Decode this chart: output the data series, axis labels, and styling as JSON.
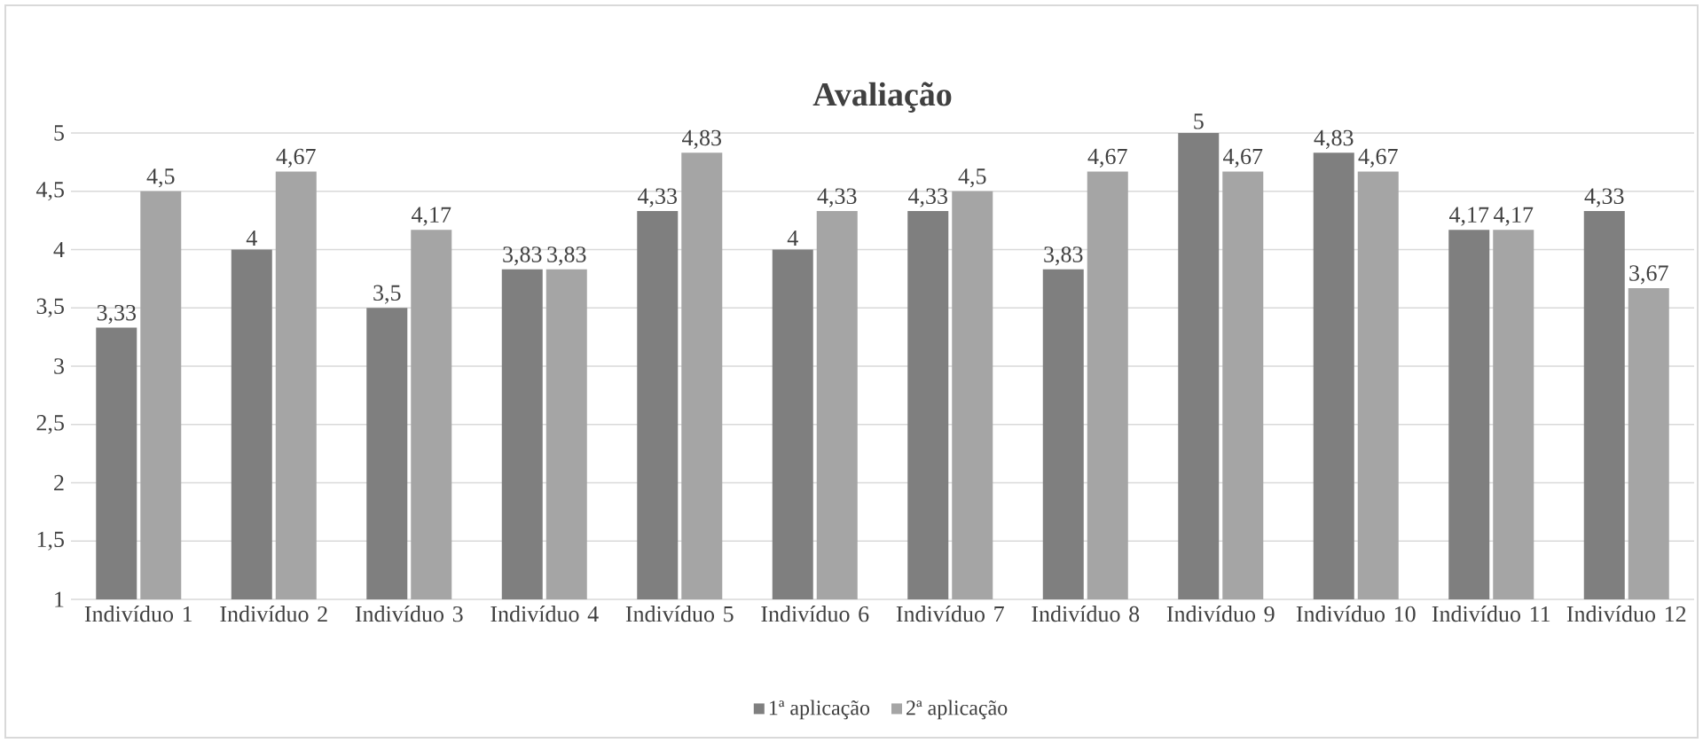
{
  "chart_data": {
    "type": "bar",
    "title": "Avaliação",
    "categories": [
      "Indivíduo 1",
      "Indivíduo 2",
      "Indivíduo 3",
      "Indivíduo 4",
      "Indivíduo 5",
      "Indivíduo 6",
      "Indivíduo 7",
      "Indivíduo 8",
      "Indivíduo 9",
      "Indivíduo 10",
      "Indivíduo 11",
      "Indivíduo 12"
    ],
    "series": [
      {
        "name": "1ª aplicação",
        "color": "#7f7f7f",
        "values": [
          3.33,
          4,
          3.5,
          3.83,
          4.33,
          4,
          4.33,
          3.83,
          5,
          4.83,
          4.17,
          4.33
        ],
        "value_labels": [
          "3,33",
          "4",
          "3,5",
          "3,83",
          "4,33",
          "4",
          "4,33",
          "3,83",
          "5",
          "4,83",
          "4,17",
          "4,33"
        ]
      },
      {
        "name": "2ª aplicação",
        "color": "#a5a5a5",
        "values": [
          4.5,
          4.67,
          4.17,
          3.83,
          4.83,
          4.33,
          4.5,
          4.67,
          4.67,
          4.67,
          4.17,
          3.67
        ],
        "value_labels": [
          "4,5",
          "4,67",
          "4,17",
          "3,83",
          "4,83",
          "4,33",
          "4,5",
          "4,67",
          "4,67",
          "4,67",
          "4,17",
          "3,67"
        ]
      }
    ],
    "ylim": [
      1,
      5
    ],
    "yticks": [
      1,
      {
        "value": 1.5,
        "label": "1,5"
      },
      2,
      {
        "value": 2.5,
        "label": "2,5"
      },
      3,
      {
        "value": 3.5,
        "label": "3,5"
      },
      4,
      {
        "value": 4.5,
        "label": "4,5"
      },
      5
    ],
    "grid": "y",
    "legend": "bottom"
  }
}
